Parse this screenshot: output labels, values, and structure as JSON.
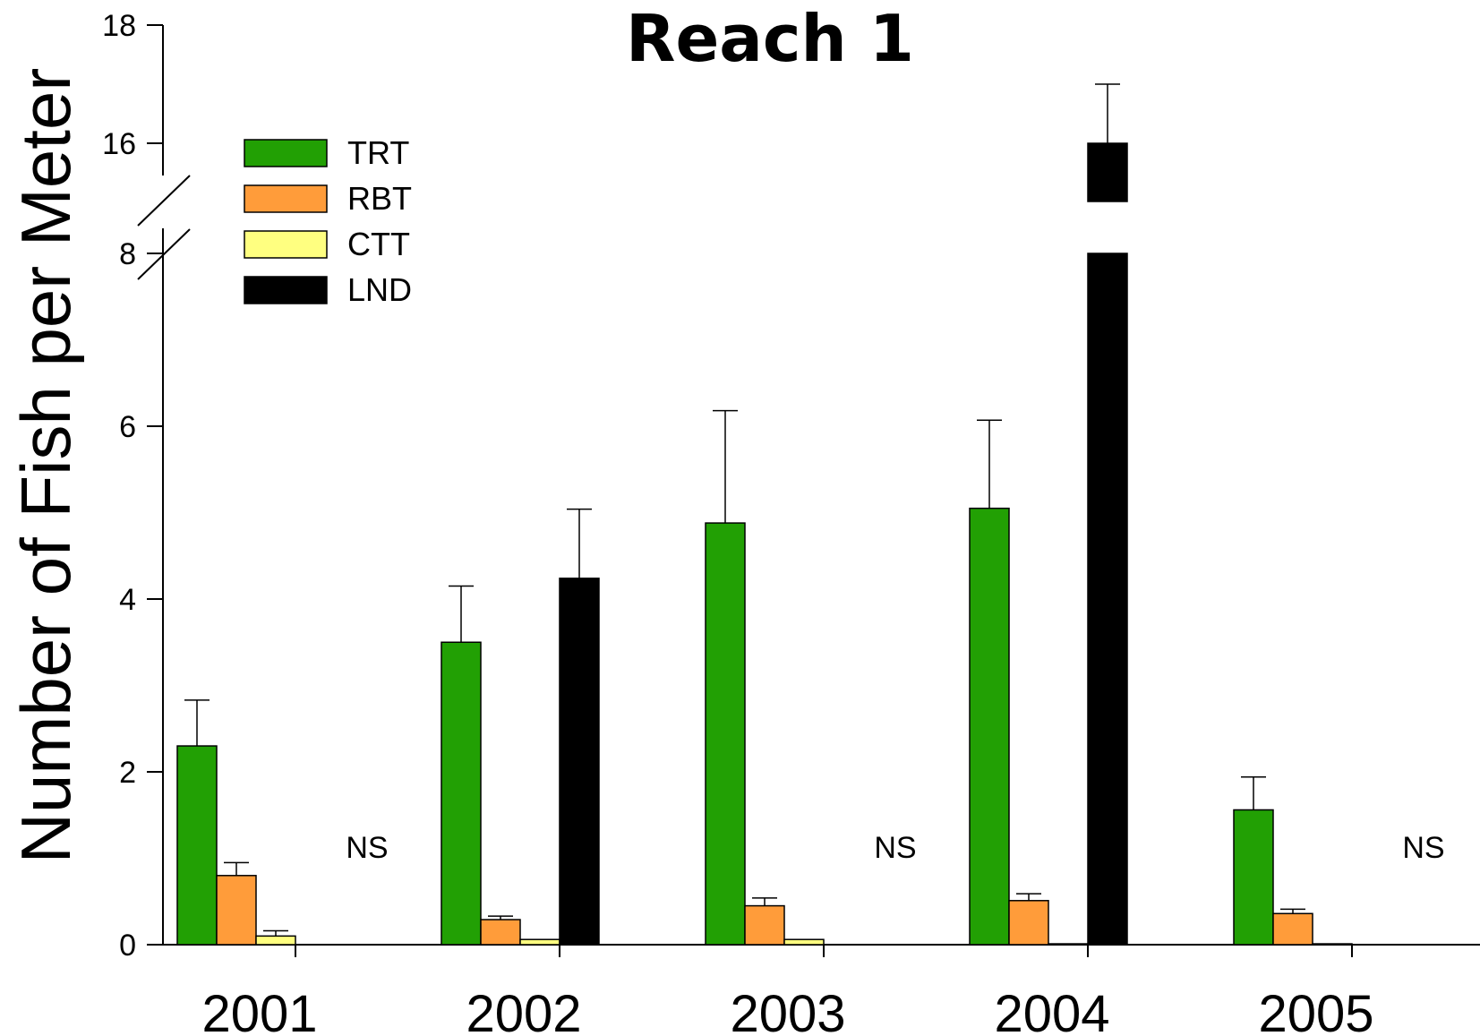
{
  "chart_data": {
    "type": "bar",
    "title": "Reach 1",
    "xlabel": "",
    "ylabel": "Number of Fish per Meter",
    "categories": [
      "2001",
      "2002",
      "2003",
      "2004",
      "2005"
    ],
    "y_ticks_lower": [
      "0",
      "2",
      "4",
      "6",
      "8"
    ],
    "y_ticks_upper": [
      "16",
      "18"
    ],
    "ylim_lower": [
      0,
      8
    ],
    "ylim_upper": [
      16,
      18
    ],
    "axis_break": true,
    "legend_position": "top-left",
    "series": [
      {
        "name": "TRT",
        "color": "#22a004",
        "values": [
          2.3,
          3.5,
          4.88,
          5.05,
          1.56
        ],
        "errors": [
          0.53,
          0.65,
          1.3,
          1.02,
          0.38
        ]
      },
      {
        "name": "RBT",
        "color": "#ff9c3a",
        "values": [
          0.8,
          0.29,
          0.45,
          0.51,
          0.36
        ],
        "errors": [
          0.15,
          0.04,
          0.09,
          0.08,
          0.05
        ]
      },
      {
        "name": "CTT",
        "color": "#ffff80",
        "values": [
          0.1,
          0.06,
          0.06,
          0.01,
          0.01
        ],
        "errors": [
          0.06,
          0.0,
          0.0,
          0.0,
          0.0
        ]
      },
      {
        "name": "LND",
        "color": "#000000",
        "values": [
          null,
          4.24,
          null,
          16.0,
          null
        ],
        "errors": [
          null,
          0.8,
          null,
          1.0,
          null
        ]
      }
    ],
    "annotations": [
      {
        "category": "2001",
        "text": "NS"
      },
      {
        "category": "2003",
        "text": "NS"
      },
      {
        "category": "2005",
        "text": "NS"
      }
    ]
  }
}
